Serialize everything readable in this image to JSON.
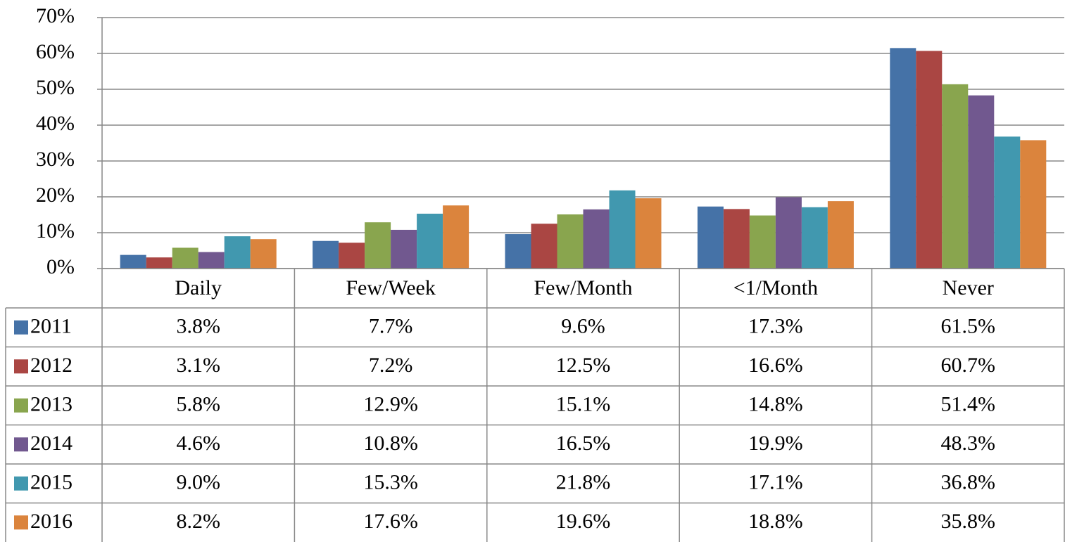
{
  "chart_data": {
    "type": "bar",
    "categories": [
      "Daily",
      "Few/Week",
      "Few/Month",
      "<1/Month",
      "Never"
    ],
    "series": [
      {
        "name": "2011",
        "color": "#4572a7",
        "values": [
          3.8,
          7.7,
          9.6,
          17.3,
          61.5
        ],
        "value_labels": [
          "3.8%",
          "7.7%",
          "9.6%",
          "17.3%",
          "61.5%"
        ]
      },
      {
        "name": "2012",
        "color": "#aa4643",
        "values": [
          3.1,
          7.2,
          12.5,
          16.6,
          60.7
        ],
        "value_labels": [
          "3.1%",
          "7.2%",
          "12.5%",
          "16.6%",
          "60.7%"
        ]
      },
      {
        "name": "2013",
        "color": "#89a54e",
        "values": [
          5.8,
          12.9,
          15.1,
          14.8,
          51.4
        ],
        "value_labels": [
          "5.8%",
          "12.9%",
          "15.1%",
          "14.8%",
          "51.4%"
        ]
      },
      {
        "name": "2014",
        "color": "#71588f",
        "values": [
          4.6,
          10.8,
          16.5,
          19.9,
          48.3
        ],
        "value_labels": [
          "4.6%",
          "10.8%",
          "16.5%",
          "19.9%",
          "48.3%"
        ]
      },
      {
        "name": "2015",
        "color": "#4198af",
        "values": [
          9.0,
          15.3,
          21.8,
          17.1,
          36.8
        ],
        "value_labels": [
          "9.0%",
          "15.3%",
          "21.8%",
          "17.1%",
          "36.8%"
        ]
      },
      {
        "name": "2016",
        "color": "#db843d",
        "values": [
          8.2,
          17.6,
          19.6,
          18.8,
          35.8
        ],
        "value_labels": [
          "8.2%",
          "17.6%",
          "19.6%",
          "18.8%",
          "35.8%"
        ]
      }
    ],
    "ylim": [
      0,
      70
    ],
    "yticks": [
      {
        "value": 0,
        "label": "0%"
      },
      {
        "value": 10,
        "label": "10%"
      },
      {
        "value": 20,
        "label": "20%"
      },
      {
        "value": 30,
        "label": "30%"
      },
      {
        "value": 40,
        "label": "40%"
      },
      {
        "value": 50,
        "label": "50%"
      },
      {
        "value": 60,
        "label": "60%"
      },
      {
        "value": 70,
        "label": "70%"
      }
    ],
    "grid": true,
    "data_table": true
  }
}
